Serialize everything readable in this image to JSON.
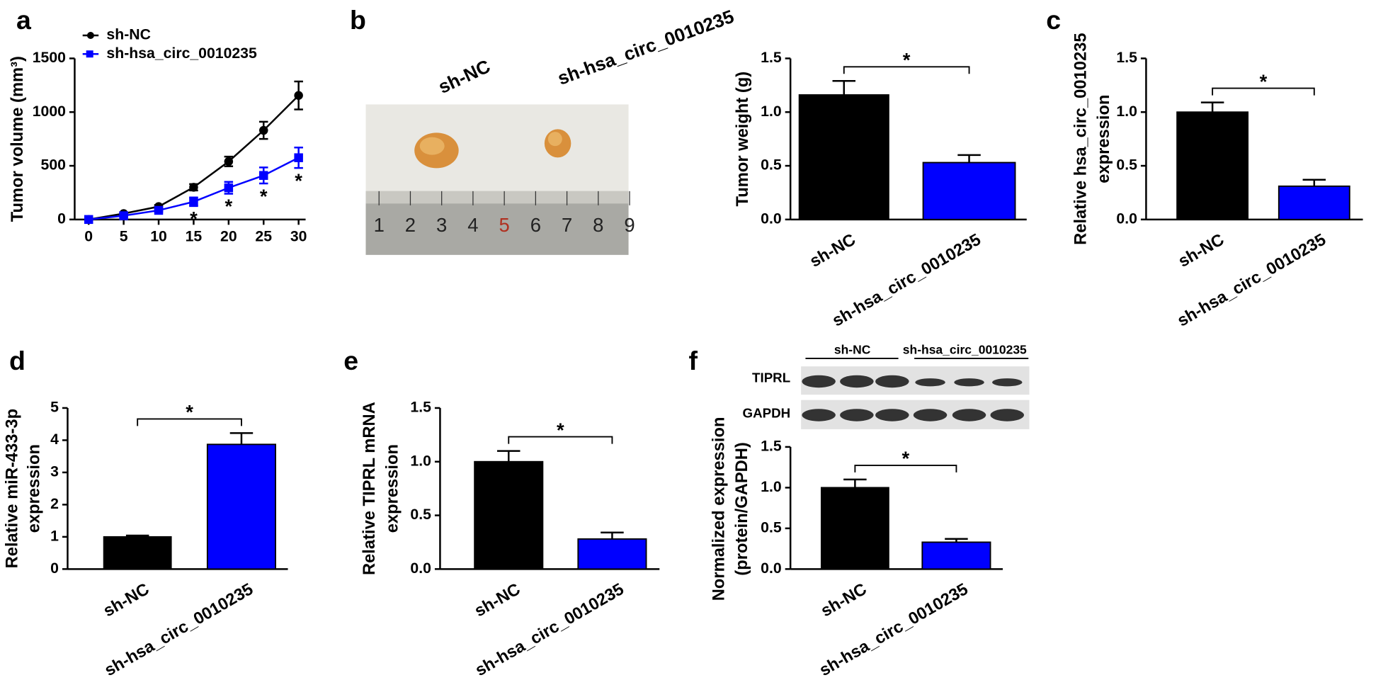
{
  "chart_data": [
    {
      "type": "line",
      "panel": "a",
      "ylabel": "Tumor volume (mm³)",
      "x": [
        0,
        5,
        10,
        15,
        20,
        25,
        30
      ],
      "xlim": [
        -2,
        31
      ],
      "xticks": [
        0,
        5,
        10,
        15,
        20,
        25,
        30
      ],
      "ylim": [
        0,
        1500
      ],
      "yticks": [
        0,
        500,
        1000,
        1500
      ],
      "series": [
        {
          "name": "sh-NC",
          "color": "#000000",
          "marker": "circle",
          "values": [
            0,
            55,
            120,
            300,
            540,
            830,
            1155
          ],
          "errors": [
            0,
            10,
            15,
            30,
            45,
            80,
            130
          ]
        },
        {
          "name": "sh-hsa_circ_0010235",
          "color": "#0000ff",
          "marker": "square",
          "values": [
            0,
            35,
            85,
            165,
            295,
            410,
            575
          ],
          "errors": [
            0,
            8,
            12,
            40,
            55,
            75,
            95
          ]
        }
      ],
      "annotations": [
        {
          "x": 15,
          "text": "*"
        },
        {
          "x": 20,
          "text": "*"
        },
        {
          "x": 25,
          "text": "*"
        },
        {
          "x": 30,
          "text": "*"
        }
      ]
    },
    {
      "type": "bar",
      "panel": "b",
      "ylabel": [
        "Tumor weight (g)"
      ],
      "photo_labels": [
        "sh-NC",
        "sh-hsa_circ_0010235"
      ],
      "ruler_labels": [
        "1",
        "2",
        "3",
        "4",
        "5",
        "6",
        "7",
        "8",
        "9"
      ],
      "categories": [
        "sh-NC",
        "sh-hsa_circ_0010235"
      ],
      "values": [
        1.16,
        0.53
      ],
      "errors": [
        0.13,
        0.07
      ],
      "colors": [
        "#000000",
        "#0000ff"
      ],
      "ylim": [
        0,
        1.5
      ],
      "yticks": [
        {
          "value": 0,
          "label": "0.0"
        },
        0.5,
        {
          "value": 1,
          "label": "1.0"
        },
        1.5
      ],
      "significance": "*"
    },
    {
      "type": "bar",
      "panel": "c",
      "ylabel": [
        "Relative hsa_circ_0010235",
        "expression"
      ],
      "categories": [
        "sh-NC",
        "sh-hsa_circ_0010235"
      ],
      "values": [
        1.0,
        0.31
      ],
      "errors": [
        0.09,
        0.06
      ],
      "colors": [
        "#000000",
        "#0000ff"
      ],
      "ylim": [
        0,
        1.5
      ],
      "yticks": [
        {
          "value": 0,
          "label": "0.0"
        },
        0.5,
        {
          "value": 1,
          "label": "1.0"
        },
        1.5
      ],
      "significance": "*"
    },
    {
      "type": "bar",
      "panel": "d",
      "ylabel": [
        "Relative miR-433-3p",
        "expression"
      ],
      "categories": [
        "sh-NC",
        "sh-hsa_circ_0010235"
      ],
      "values": [
        1.0,
        3.87
      ],
      "errors": [
        0.04,
        0.35
      ],
      "colors": [
        "#000000",
        "#0000ff"
      ],
      "ylim": [
        0,
        5
      ],
      "yticks": [
        0,
        1,
        2,
        3,
        4,
        5
      ],
      "significance": "*"
    },
    {
      "type": "bar",
      "panel": "e",
      "ylabel": [
        "Relative TIPRL mRNA",
        "expression"
      ],
      "categories": [
        "sh-NC",
        "sh-hsa_circ_0010235"
      ],
      "values": [
        1.0,
        0.28
      ],
      "errors": [
        0.1,
        0.06
      ],
      "colors": [
        "#000000",
        "#0000ff"
      ],
      "ylim": [
        0,
        1.5
      ],
      "yticks": [
        {
          "value": 0,
          "label": "0.0"
        },
        0.5,
        {
          "value": 1,
          "label": "1.0"
        },
        1.5
      ],
      "significance": "*"
    },
    {
      "type": "bar",
      "panel": "f",
      "ylabel": [
        "Normalized expression",
        "(protein/GAPDH)"
      ],
      "blot_groups": [
        "sh-NC",
        "sh-hsa_circ_0010235"
      ],
      "blot_rows": [
        "TIPRL",
        "GAPDH"
      ],
      "categories": [
        "sh-NC",
        "sh-hsa_circ_0010235"
      ],
      "values": [
        1.0,
        0.33
      ],
      "errors": [
        0.1,
        0.04
      ],
      "colors": [
        "#000000",
        "#0000ff"
      ],
      "ylim": [
        0,
        1.5
      ],
      "yticks": [
        {
          "value": 0,
          "label": "0.0"
        },
        0.5,
        {
          "value": 1,
          "label": "1.0"
        },
        1.5
      ],
      "significance": "*"
    }
  ]
}
